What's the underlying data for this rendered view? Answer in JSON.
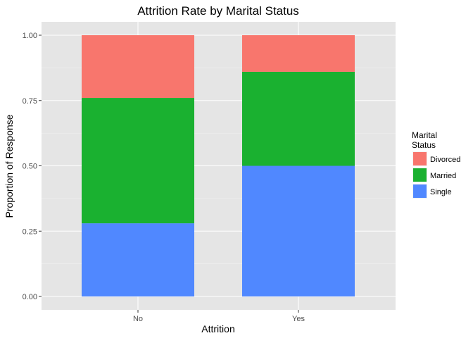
{
  "chart_data": {
    "type": "bar",
    "stacked": true,
    "title": "Attrition Rate by Marital Status",
    "xlabel": "Attrition",
    "ylabel": "Proportion of Response",
    "categories": [
      "No",
      "Yes"
    ],
    "ylim": [
      0,
      1
    ],
    "y_ticks": [
      "0.00",
      "0.25",
      "0.50",
      "0.75",
      "1.00"
    ],
    "grid": true,
    "legend_position": "right",
    "legend_title": [
      "Marital",
      "Status"
    ],
    "series": [
      {
        "name": "Divorced",
        "color": "#F8766D",
        "values": [
          0.24,
          0.14
        ]
      },
      {
        "name": "Married",
        "color": "#1AB130",
        "values": [
          0.48,
          0.36
        ]
      },
      {
        "name": "Single",
        "color": "#5088FF",
        "values": [
          0.28,
          0.5
        ]
      }
    ],
    "stack_order_bottom_to_top": [
      "Single",
      "Married",
      "Divorced"
    ]
  }
}
